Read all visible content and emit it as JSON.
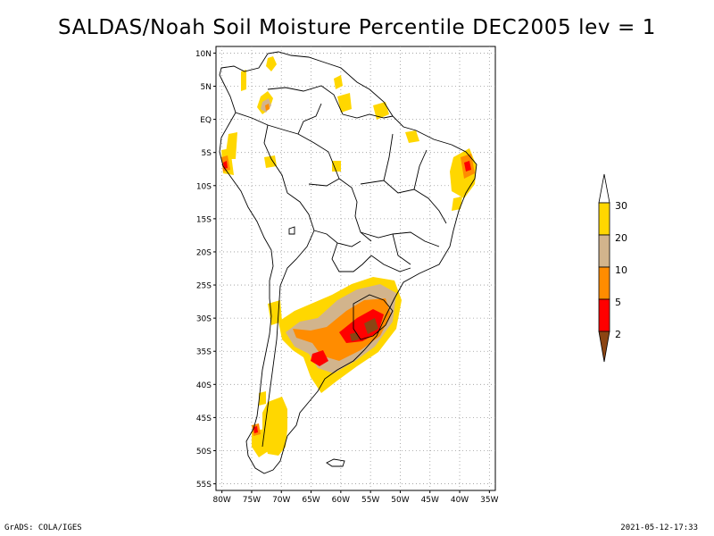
{
  "title": "SALDAS/Noah Soil Moisture Percentile DEC2005 lev = 1",
  "map": {
    "lat_ticks": [
      "10N",
      "5N",
      "EQ",
      "5S",
      "10S",
      "15S",
      "20S",
      "25S",
      "30S",
      "35S",
      "40S",
      "45S",
      "50S",
      "55S"
    ],
    "lon_ticks": [
      "80W",
      "75W",
      "70W",
      "65W",
      "60W",
      "55W",
      "50W",
      "45W",
      "40W",
      "35W"
    ],
    "lon_range": [
      -81,
      -34
    ],
    "lat_range": [
      -56,
      11
    ],
    "grid": "dotted"
  },
  "colorbar": {
    "labels": [
      "2",
      "5",
      "10",
      "20",
      "30"
    ],
    "colors": [
      "#8b4513",
      "#ff0000",
      "#ff8c00",
      "#d2b48c",
      "#ffd700"
    ],
    "top_color": "#ffffff"
  },
  "footer": {
    "left": "GrADS: COLA/IGES",
    "right": "2021-05-12-17:33"
  }
}
